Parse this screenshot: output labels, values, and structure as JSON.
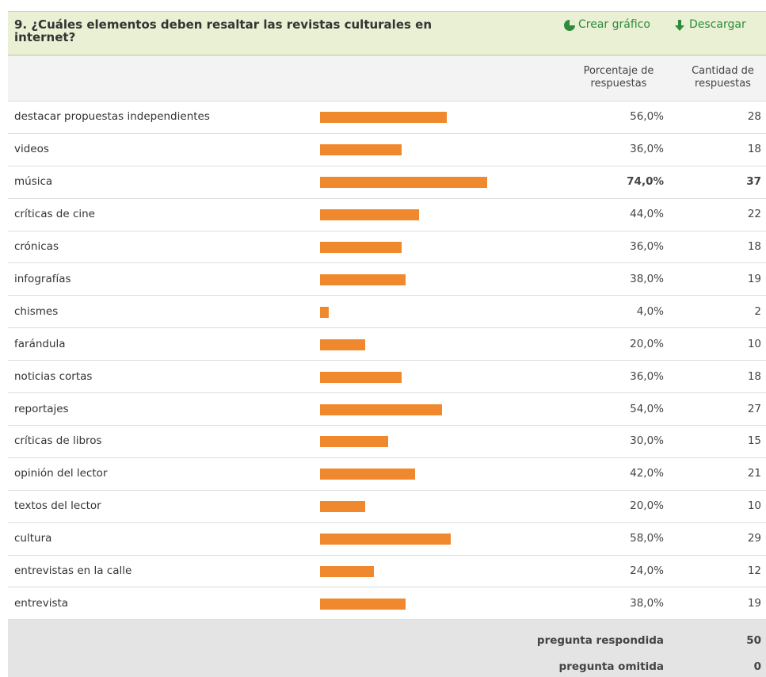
{
  "header": {
    "title": "9. ¿Cuáles elementos deben resaltar las revistas culturales en internet?",
    "actions": [
      "Crear gráfico",
      "Descargar"
    ]
  },
  "table": {
    "columns": [
      "Porcentaje de respuestas",
      "Cantidad de respuestas"
    ],
    "rows": [
      {
        "label": "destacar propuestas independientes",
        "value": 56,
        "value_label": "56,0%",
        "count": 28
      },
      {
        "label": "videos",
        "value": 36,
        "value_label": "36,0%",
        "count": 18
      },
      {
        "label": "música",
        "value": 74,
        "value_label": "74,0%",
        "count": 37
      },
      {
        "label": "críticas de cine",
        "value": 44,
        "value_label": "44,0%",
        "count": 22
      },
      {
        "label": "crónicas",
        "value": 36,
        "value_label": "36,0%",
        "count": 18
      },
      {
        "label": "infografías",
        "value": 38,
        "value_label": "38,0%",
        "count": 19
      },
      {
        "label": "chismes",
        "value": 4,
        "value_label": "4,0%",
        "count": 2
      },
      {
        "label": "farándula",
        "value": 20,
        "value_label": "20,0%",
        "count": 10
      },
      {
        "label": "noticias cortas",
        "value": 36,
        "value_label": "36,0%",
        "count": 18
      },
      {
        "label": "reportajes",
        "value": 54,
        "value_label": "54,0%",
        "count": 27
      },
      {
        "label": "críticas de libros",
        "value": 30,
        "value_label": "30,0%",
        "count": 15
      },
      {
        "label": "opinión del lector",
        "value": 42,
        "value_label": "42,0%",
        "count": 21
      },
      {
        "label": "textos del lector",
        "value": 20,
        "value_label": "20,0%",
        "count": 10
      },
      {
        "label": "cultura",
        "value": 58,
        "value_label": "58,0%",
        "count": 29
      },
      {
        "label": "entrevistas en la calle",
        "value": 24,
        "value_label": "24,0%",
        "count": 12
      },
      {
        "label": "entrevista",
        "value": 38,
        "value_label": "38,0%",
        "count": 19
      }
    ],
    "bar_color": "#f0882e",
    "footer": [
      {
        "label": "pregunta respondida",
        "count": 50
      },
      {
        "label": "pregunta omitida",
        "count": 0
      }
    ]
  }
}
